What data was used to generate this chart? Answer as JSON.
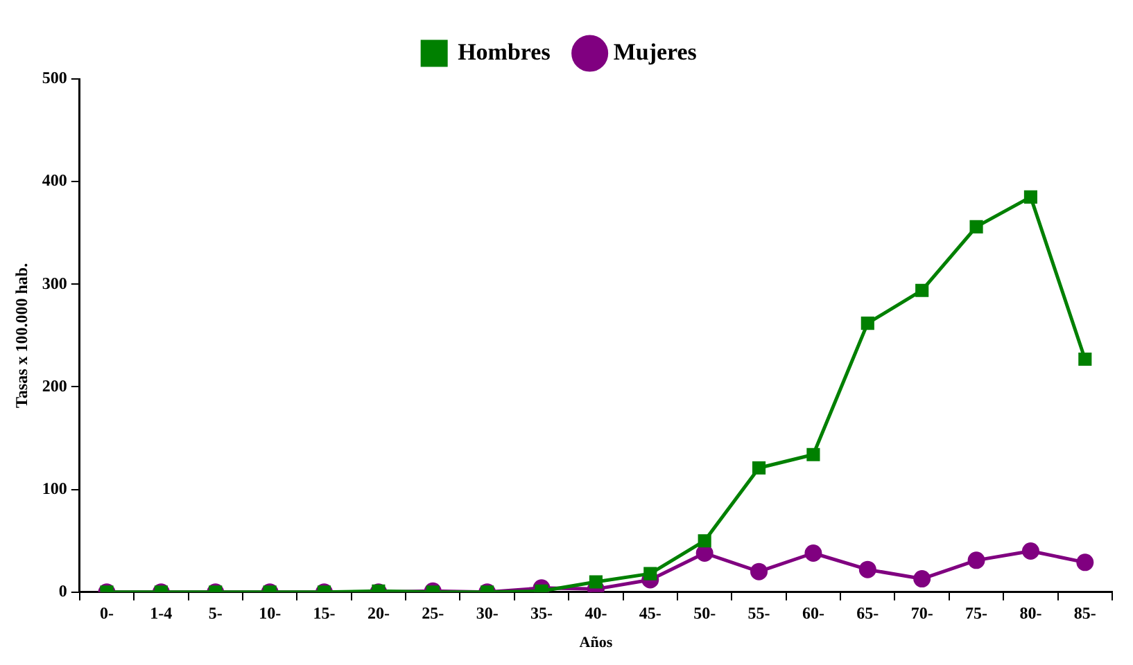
{
  "chart_data": {
    "type": "line",
    "xlabel": "Años",
    "ylabel": "Tasas x 100.000 hab.",
    "categories": [
      "0-",
      "1-4",
      "5-",
      "10-",
      "15-",
      "20-",
      "25-",
      "30-",
      "35-",
      "40-",
      "45-",
      "50-",
      "55-",
      "60-",
      "65-",
      "70-",
      "75-",
      "80-",
      "85-"
    ],
    "series": [
      {
        "name": "Hombres",
        "color": "#008000",
        "marker": "square",
        "values": [
          0,
          0,
          0,
          0,
          0,
          1,
          0,
          0,
          1,
          10,
          18,
          50,
          121,
          134,
          262,
          294,
          356,
          385,
          227
        ]
      },
      {
        "name": "Mujeres",
        "color": "#800080",
        "marker": "circle",
        "values": [
          0,
          0,
          0,
          0,
          0,
          0,
          1,
          0,
          4,
          3,
          12,
          38,
          20,
          38,
          22,
          13,
          31,
          40,
          29
        ]
      }
    ],
    "ylim": [
      0,
      500
    ],
    "yticks": [
      0,
      100,
      200,
      300,
      400,
      500
    ],
    "grid": false,
    "legend": "top",
    "line_style": "solid"
  }
}
